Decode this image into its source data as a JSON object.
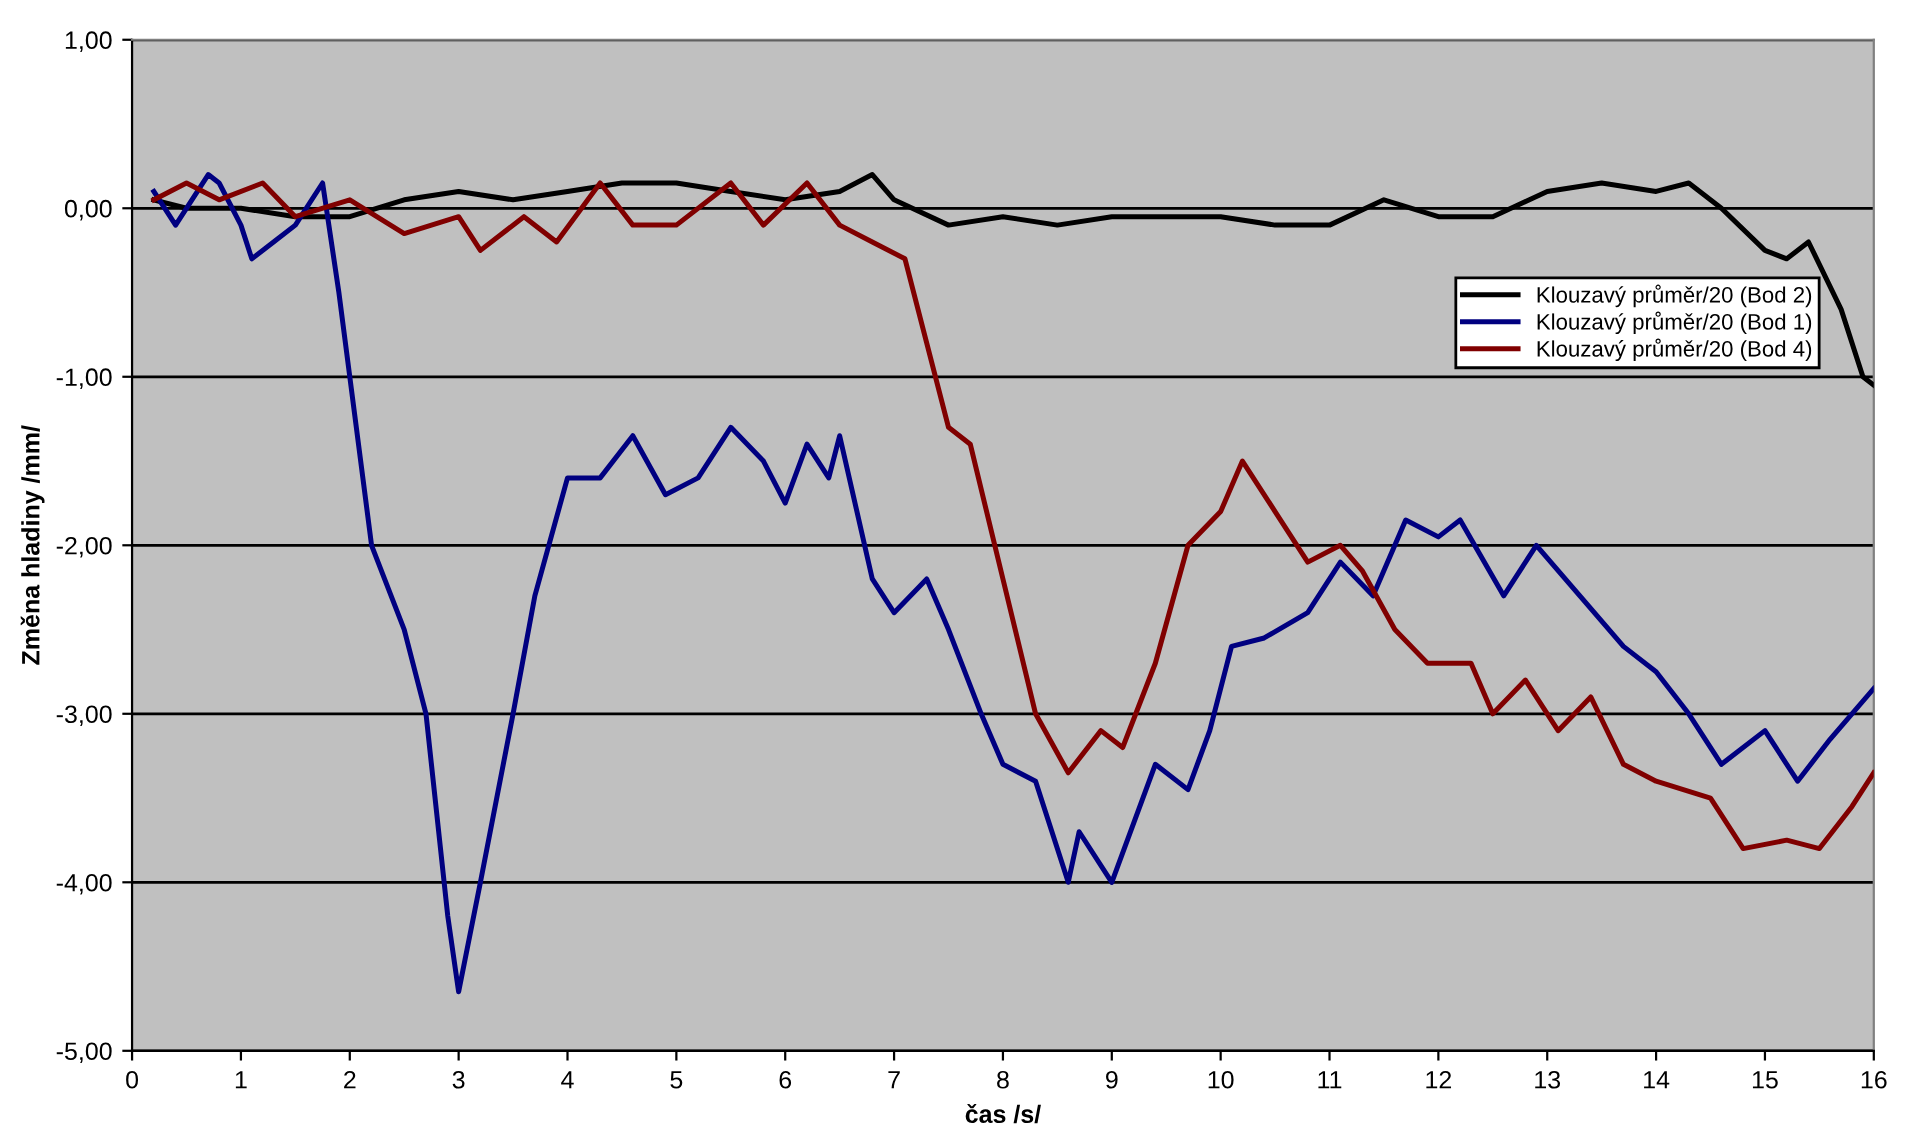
{
  "chart_data": {
    "type": "line",
    "xlabel": "čas /s/",
    "ylabel": "Změna hladiny /mm/",
    "xlim": [
      0,
      16
    ],
    "xticks": [
      0,
      1,
      2,
      3,
      4,
      5,
      6,
      7,
      8,
      9,
      10,
      11,
      12,
      13,
      14,
      15,
      16
    ],
    "ylim": [
      -5,
      1
    ],
    "yticks": [
      {
        "value": -5,
        "label": "-5,00"
      },
      {
        "value": -4,
        "label": "-4,00"
      },
      {
        "value": -3,
        "label": "-3,00"
      },
      {
        "value": -2,
        "label": "-2,00"
      },
      {
        "value": -1,
        "label": "-1,00"
      },
      {
        "value": 0,
        "label": "0,00"
      },
      {
        "value": 1,
        "label": "1,00"
      }
    ],
    "grid": "y",
    "legend": "right",
    "series": [
      {
        "name": "Klouzavý průměr/20 (Bod 2)",
        "color": "#000000",
        "x": [
          0.2,
          0.5,
          1,
          1.5,
          2,
          2.5,
          3,
          3.5,
          4,
          4.5,
          5,
          5.5,
          6,
          6.5,
          6.8,
          7,
          7.5,
          8,
          8.5,
          9,
          9.5,
          10,
          10.5,
          11,
          11.5,
          12,
          12.5,
          13,
          13.5,
          14,
          14.3,
          14.6,
          15,
          15.2,
          15.4,
          15.7,
          15.9,
          16
        ],
        "values": [
          0.05,
          0.0,
          0.0,
          -0.05,
          -0.05,
          0.05,
          0.1,
          0.05,
          0.1,
          0.15,
          0.15,
          0.1,
          0.05,
          0.1,
          0.2,
          0.05,
          -0.1,
          -0.05,
          -0.1,
          -0.05,
          -0.05,
          -0.05,
          -0.1,
          -0.1,
          0.05,
          -0.05,
          -0.05,
          0.1,
          0.15,
          0.1,
          0.15,
          0.0,
          -0.25,
          -0.3,
          -0.2,
          -0.6,
          -1.0,
          -1.05
        ]
      },
      {
        "name": "Klouzavý průměr/20 (Bod 1)",
        "color": "#000080",
        "x": [
          0.2,
          0.4,
          0.7,
          0.8,
          1.0,
          1.1,
          1.3,
          1.5,
          1.75,
          1.9,
          2.0,
          2.2,
          2.5,
          2.7,
          2.9,
          3.0,
          3.2,
          3.5,
          3.7,
          4.0,
          4.3,
          4.6,
          4.9,
          5.2,
          5.5,
          5.8,
          6.0,
          6.2,
          6.4,
          6.5,
          6.8,
          7.0,
          7.3,
          7.5,
          7.8,
          8.0,
          8.3,
          8.6,
          8.7,
          9.0,
          9.4,
          9.7,
          9.9,
          10.1,
          10.4,
          10.8,
          11.1,
          11.4,
          11.7,
          12.0,
          12.2,
          12.6,
          12.9,
          13.3,
          13.7,
          14.0,
          14.3,
          14.6,
          15.0,
          15.3,
          15.6,
          16.0
        ],
        "values": [
          0.1,
          -0.1,
          0.2,
          0.15,
          -0.1,
          -0.3,
          -0.2,
          -0.1,
          0.15,
          -0.5,
          -1.0,
          -2.0,
          -2.5,
          -3.0,
          -4.2,
          -4.65,
          -4.0,
          -3.0,
          -2.3,
          -1.6,
          -1.6,
          -1.35,
          -1.7,
          -1.6,
          -1.3,
          -1.5,
          -1.75,
          -1.4,
          -1.6,
          -1.35,
          -2.2,
          -2.4,
          -2.2,
          -2.5,
          -3.0,
          -3.3,
          -3.4,
          -4.0,
          -3.7,
          -4.0,
          -3.3,
          -3.45,
          -3.1,
          -2.6,
          -2.55,
          -2.4,
          -2.1,
          -2.3,
          -1.85,
          -1.95,
          -1.85,
          -2.3,
          -2.0,
          -2.3,
          -2.6,
          -2.75,
          -3.0,
          -3.3,
          -3.1,
          -3.4,
          -3.15,
          -2.85
        ]
      },
      {
        "name": "Klouzavý průměr/20 (Bod 4)",
        "color": "#800000",
        "x": [
          0.2,
          0.5,
          0.8,
          1.2,
          1.5,
          2.0,
          2.5,
          3.0,
          3.2,
          3.6,
          3.9,
          4.3,
          4.6,
          5.0,
          5.5,
          5.8,
          6.2,
          6.5,
          6.8,
          7.1,
          7.3,
          7.5,
          7.7,
          8.0,
          8.3,
          8.6,
          8.9,
          9.1,
          9.4,
          9.7,
          10.0,
          10.2,
          10.5,
          10.8,
          11.1,
          11.3,
          11.6,
          11.9,
          12.3,
          12.5,
          12.8,
          13.1,
          13.4,
          13.7,
          14.0,
          14.5,
          14.8,
          15.2,
          15.5,
          15.8,
          16.0
        ],
        "values": [
          0.05,
          0.15,
          0.05,
          0.15,
          -0.05,
          0.05,
          -0.15,
          -0.05,
          -0.25,
          -0.05,
          -0.2,
          0.15,
          -0.1,
          -0.1,
          0.15,
          -0.1,
          0.15,
          -0.1,
          -0.2,
          -0.3,
          -0.8,
          -1.3,
          -1.4,
          -2.2,
          -3.0,
          -3.35,
          -3.1,
          -3.2,
          -2.7,
          -2.0,
          -1.8,
          -1.5,
          -1.8,
          -2.1,
          -2.0,
          -2.15,
          -2.5,
          -2.7,
          -2.7,
          -3.0,
          -2.8,
          -3.1,
          -2.9,
          -3.3,
          -3.4,
          -3.5,
          -3.8,
          -3.75,
          -3.8,
          -3.55,
          -3.35
        ]
      }
    ]
  }
}
